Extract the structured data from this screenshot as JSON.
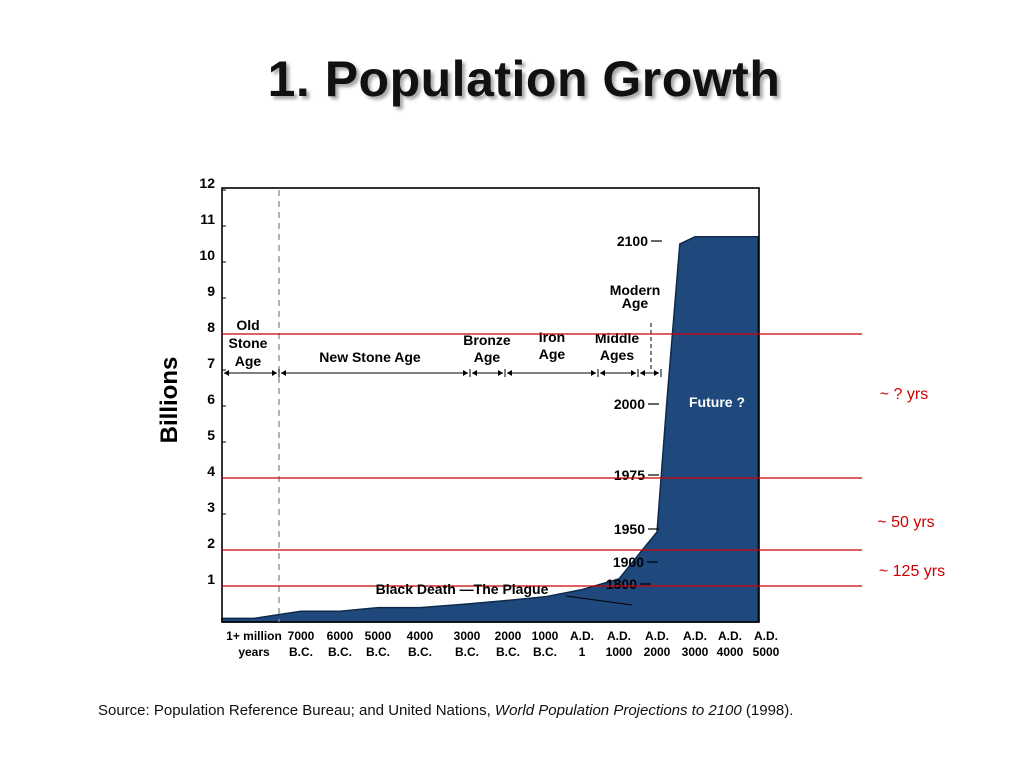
{
  "title": "1. Population Growth",
  "source": {
    "prefix": "Source: Population Reference Bureau; and United Nations, ",
    "italic": "World Population Projections to 2100",
    "suffix": " (1998)."
  },
  "colors": {
    "area": "#1f497d",
    "reference_lines": "#cc0000",
    "interval_labels": "#cc0000",
    "text": "#000000"
  },
  "chart_data": {
    "type": "area",
    "ylabel": "Billions",
    "ylim": [
      0,
      12
    ],
    "yticks": [
      "1",
      "2",
      "3",
      "4",
      "5",
      "6",
      "7",
      "8",
      "9",
      "10",
      "11",
      "12"
    ],
    "x_ticks": [
      {
        "lines": [
          "1+ million",
          "years"
        ]
      },
      {
        "lines": [
          "7000",
          "B.C."
        ]
      },
      {
        "lines": [
          "6000",
          "B.C."
        ]
      },
      {
        "lines": [
          "5000",
          "B.C."
        ]
      },
      {
        "lines": [
          "4000",
          "B.C."
        ]
      },
      {
        "lines": [
          "3000",
          "B.C."
        ]
      },
      {
        "lines": [
          "2000",
          "B.C."
        ]
      },
      {
        "lines": [
          "1000",
          "B.C."
        ]
      },
      {
        "lines": [
          "A.D.",
          "1"
        ]
      },
      {
        "lines": [
          "A.D.",
          "1000"
        ]
      },
      {
        "lines": [
          "A.D.",
          "2000"
        ]
      },
      {
        "lines": [
          "A.D.",
          "3000"
        ]
      },
      {
        "lines": [
          "A.D.",
          "4000"
        ]
      },
      {
        "lines": [
          "A.D.",
          "5000"
        ]
      }
    ],
    "population_billions": [
      [
        0,
        0.1
      ],
      [
        1,
        0.3
      ],
      [
        2,
        0.3
      ],
      [
        3,
        0.4
      ],
      [
        4,
        0.4
      ],
      [
        5,
        0.5
      ],
      [
        6,
        0.6
      ],
      [
        7,
        0.7
      ],
      [
        8,
        0.9
      ],
      [
        9,
        1.2
      ],
      [
        10,
        2.5
      ],
      [
        10.25,
        6.0
      ],
      [
        10.6,
        10.5
      ],
      [
        11,
        10.7
      ],
      [
        12,
        10.7
      ],
      [
        13,
        10.7
      ]
    ],
    "year_markers": [
      {
        "label": "1800",
        "value": 1.0
      },
      {
        "label": "1900",
        "value": 1.6
      },
      {
        "label": "1950",
        "value": 2.5
      },
      {
        "label": "1975",
        "value": 4.0
      },
      {
        "label": "2000",
        "value": 6.0
      },
      {
        "label": "2100",
        "value": 10.7
      }
    ],
    "eras": [
      {
        "lines": [
          "Old",
          "Stone",
          "Age"
        ]
      },
      {
        "lines": [
          "New Stone Age"
        ]
      },
      {
        "lines": [
          "Bronze",
          "Age"
        ]
      },
      {
        "lines": [
          "Iron",
          "Age"
        ]
      },
      {
        "lines": [
          "Middle",
          "Ages"
        ]
      },
      {
        "lines": [
          "Modern",
          "Age"
        ]
      }
    ],
    "annotations": {
      "black_death": "Black Death —The Plague",
      "future": "Future ?"
    },
    "reference_lines_billions": [
      1,
      2,
      4,
      8
    ],
    "interval_labels": [
      "~ ? yrs",
      "~ 50 yrs",
      "~ 125 yrs"
    ]
  }
}
